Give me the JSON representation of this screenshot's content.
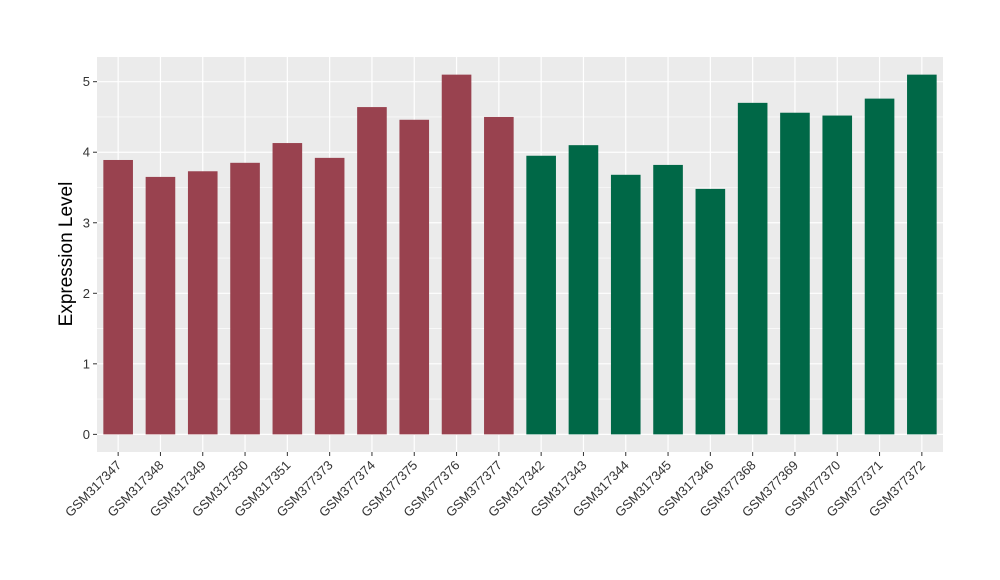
{
  "chart_data": {
    "type": "bar",
    "title": "",
    "xlabel": "",
    "ylabel": "Expression Level",
    "ylim": [
      -0.25,
      5.35
    ],
    "yticks": [
      0,
      1,
      2,
      3,
      4,
      5
    ],
    "grid": true,
    "legend": "none",
    "categories": [
      "GSM317347",
      "GSM317348",
      "GSM317349",
      "GSM317350",
      "GSM317351",
      "GSM377373",
      "GSM377374",
      "GSM377375",
      "GSM377376",
      "GSM377377",
      "GSM317342",
      "GSM317343",
      "GSM317344",
      "GSM317345",
      "GSM317346",
      "GSM377368",
      "GSM377369",
      "GSM377370",
      "GSM377371",
      "GSM377372"
    ],
    "values": [
      3.89,
      3.65,
      3.73,
      3.85,
      4.13,
      3.92,
      4.64,
      4.46,
      5.1,
      4.5,
      3.95,
      4.1,
      3.68,
      3.82,
      3.48,
      4.7,
      4.56,
      4.52,
      4.76,
      5.1
    ],
    "bar_colors": [
      "#99424f",
      "#99424f",
      "#99424f",
      "#99424f",
      "#99424f",
      "#99424f",
      "#99424f",
      "#99424f",
      "#99424f",
      "#99424f",
      "#006847",
      "#006847",
      "#006847",
      "#006847",
      "#006847",
      "#006847",
      "#006847",
      "#006847",
      "#006847",
      "#006847"
    ],
    "colors": {
      "panel_bg": "#ebebeb",
      "grid": "#ffffff",
      "group1": "#99424f",
      "group2": "#006847"
    }
  }
}
